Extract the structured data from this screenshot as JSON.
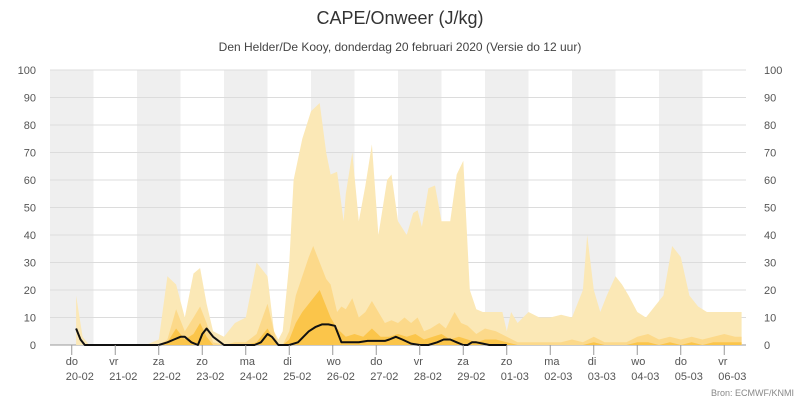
{
  "chart_data": {
    "type": "area",
    "title": "CAPE/Onweer (J/kg)",
    "subtitle": "Den Helder/De Kooy, donderdag 20 februari 2020 (Versie do 12 uur)",
    "source": "Bron: ECMWF/KNMI",
    "xlabel": "",
    "ylabel": "",
    "ylim": [
      0,
      100
    ],
    "yticks": [
      0,
      10,
      20,
      30,
      40,
      50,
      60,
      70,
      80,
      90,
      100
    ],
    "x_range": [
      -0.5,
      15.5
    ],
    "grid": "horizontal gridlines; alternating grey day bands",
    "legend": "none",
    "x_ticks": [
      {
        "x": 0,
        "day": "do",
        "date": "20-02"
      },
      {
        "x": 1,
        "day": "vr",
        "date": "21-02"
      },
      {
        "x": 2,
        "day": "za",
        "date": "22-02"
      },
      {
        "x": 3,
        "day": "zo",
        "date": "23-02"
      },
      {
        "x": 4,
        "day": "ma",
        "date": "24-02"
      },
      {
        "x": 5,
        "day": "di",
        "date": "25-02"
      },
      {
        "x": 6,
        "day": "wo",
        "date": "26-02"
      },
      {
        "x": 7,
        "day": "do",
        "date": "27-02"
      },
      {
        "x": 8,
        "day": "vr",
        "date": "28-02"
      },
      {
        "x": 9,
        "day": "za",
        "date": "29-02"
      },
      {
        "x": 10,
        "day": "zo",
        "date": "01-03"
      },
      {
        "x": 11,
        "day": "ma",
        "date": "02-03"
      },
      {
        "x": 12,
        "day": "di",
        "date": "03-03"
      },
      {
        "x": 13,
        "day": "wo",
        "date": "04-03"
      },
      {
        "x": 14,
        "day": "do",
        "date": "05-03"
      },
      {
        "x": 15,
        "day": "vr",
        "date": "06-03"
      }
    ],
    "shaded_day_intervals": [
      [
        -0.5,
        0.5
      ],
      [
        1.5,
        2.5
      ],
      [
        3.5,
        4.5
      ],
      [
        5.5,
        6.5
      ],
      [
        7.5,
        8.5
      ],
      [
        9.5,
        10.5
      ],
      [
        11.5,
        12.5
      ],
      [
        13.5,
        14.5
      ]
    ],
    "colors": {
      "band_light": "#fbe8b6",
      "band_mid": "#fcd98a",
      "band_dark": "#fbc54a",
      "median": "#111111",
      "day_band": "#efefef",
      "grid": "#dcdcdc"
    },
    "series": [
      {
        "key": "upper",
        "x": [
          0.1,
          0.25,
          0.4,
          0.6,
          0.9,
          1.3,
          1.7,
          2.0,
          2.2,
          2.4,
          2.6,
          2.8,
          2.95,
          3.1,
          3.25,
          3.5,
          3.75,
          4.0,
          4.25,
          4.5,
          4.65,
          4.75,
          4.85,
          5.0,
          5.1,
          5.3,
          5.5,
          5.7,
          5.85,
          5.95,
          6.1,
          6.25,
          6.3,
          6.45,
          6.6,
          6.75,
          6.9,
          7.05,
          7.25,
          7.35,
          7.5,
          7.7,
          7.85,
          7.95,
          8.05,
          8.2,
          8.35,
          8.5,
          8.7,
          8.85,
          9.0,
          9.15,
          9.3,
          9.45,
          9.6,
          9.75,
          9.9,
          10.0,
          10.1,
          10.25,
          10.5,
          10.75,
          11.0,
          11.25,
          11.5,
          11.75,
          11.85,
          12.0,
          12.15,
          12.3,
          12.5,
          12.65,
          12.8,
          13.0,
          13.2,
          13.4,
          13.6,
          13.8,
          14.0,
          14.2,
          14.4,
          14.6,
          14.75,
          14.9,
          15.05,
          15.2,
          15.4
        ],
        "values": [
          18,
          3,
          0,
          0,
          0,
          0,
          0,
          2,
          25,
          22,
          10,
          26,
          28,
          15,
          5,
          3,
          8,
          10,
          30,
          25,
          5,
          2,
          5,
          30,
          60,
          75,
          85,
          88,
          70,
          62,
          63,
          45,
          55,
          70,
          45,
          58,
          73,
          40,
          60,
          62,
          45,
          40,
          48,
          49,
          43,
          57,
          58,
          45,
          45,
          62,
          67,
          20,
          13,
          12,
          12,
          12,
          12,
          5,
          12,
          8,
          12,
          10,
          10,
          11,
          10,
          20,
          40,
          20,
          12,
          18,
          25,
          22,
          18,
          12,
          10,
          14,
          18,
          36,
          32,
          18,
          14,
          12,
          12,
          12,
          12,
          12,
          12
        ]
      },
      {
        "key": "mid",
        "x": [
          0.6,
          0.9,
          1.3,
          1.7,
          2.0,
          2.2,
          2.4,
          2.6,
          2.8,
          2.95,
          3.1,
          3.25,
          3.5,
          3.75,
          4.0,
          4.25,
          4.5,
          4.65,
          4.75,
          4.85,
          5.0,
          5.15,
          5.3,
          5.45,
          5.55,
          5.7,
          5.85,
          5.95,
          6.1,
          6.2,
          6.3,
          6.45,
          6.6,
          6.75,
          6.9,
          7.05,
          7.2,
          7.35,
          7.5,
          7.65,
          7.8,
          7.95,
          8.1,
          8.25,
          8.45,
          8.6,
          8.8,
          8.95,
          9.1,
          9.3,
          9.5,
          9.75,
          10.0,
          10.25,
          10.5,
          10.75,
          11.0,
          11.25,
          11.5,
          11.75,
          12.0,
          12.25,
          12.5,
          12.75,
          13.0,
          13.25,
          13.5,
          13.75,
          14.0,
          14.25,
          14.5,
          14.75,
          15.0,
          15.25,
          15.4
        ],
        "values": [
          0,
          0,
          0,
          0,
          0,
          2,
          13,
          5,
          10,
          14,
          8,
          1,
          0,
          1,
          1,
          4,
          15,
          5,
          0,
          0,
          5,
          18,
          25,
          32,
          36,
          30,
          24,
          22,
          12,
          14,
          13,
          17,
          10,
          12,
          16,
          12,
          8,
          9,
          8,
          10,
          8,
          10,
          5,
          6,
          8,
          6,
          12,
          8,
          7,
          4,
          6,
          5,
          3,
          1,
          1,
          1,
          1,
          1,
          2,
          1,
          3,
          1,
          1,
          1,
          3,
          4,
          2,
          3,
          2,
          3,
          2,
          3,
          4,
          3,
          3
        ]
      },
      {
        "key": "lower",
        "x": [
          0.6,
          0.9,
          1.3,
          1.7,
          2.0,
          2.2,
          2.4,
          2.6,
          2.8,
          2.95,
          3.1,
          3.25,
          3.5,
          3.75,
          4.0,
          4.25,
          4.5,
          4.65,
          4.75,
          4.85,
          5.0,
          5.15,
          5.3,
          5.5,
          5.7,
          5.85,
          5.95,
          6.1,
          6.3,
          6.5,
          6.7,
          6.9,
          7.1,
          7.3,
          7.5,
          7.7,
          7.9,
          8.1,
          8.3,
          8.5,
          8.7,
          8.9,
          9.1,
          9.3,
          9.5,
          9.75,
          10.0,
          10.25,
          10.5,
          10.75,
          11.0,
          11.25,
          11.5,
          11.75,
          12.0,
          12.25,
          12.5,
          12.75,
          13.0,
          13.25,
          13.5,
          13.75,
          14.0,
          14.25,
          14.5,
          14.75,
          15.0,
          15.25,
          15.4
        ],
        "values": [
          0,
          0,
          0,
          0,
          0,
          1,
          6,
          2,
          4,
          8,
          3,
          0,
          0,
          0,
          0,
          1,
          6,
          2,
          0,
          0,
          2,
          8,
          12,
          16,
          20,
          14,
          10,
          6,
          3,
          4,
          3,
          6,
          3,
          3,
          4,
          3,
          4,
          2,
          3,
          4,
          2,
          3,
          2,
          1,
          2,
          2,
          1,
          0,
          0,
          0,
          0,
          0,
          0,
          0,
          1,
          0,
          0,
          0,
          1,
          1,
          0,
          1,
          0,
          1,
          0,
          1,
          1,
          1,
          1
        ]
      },
      {
        "key": "median",
        "x": [
          0.1,
          0.2,
          0.3,
          0.45,
          0.6,
          1.0,
          1.5,
          2.0,
          2.2,
          2.35,
          2.5,
          2.6,
          2.75,
          2.9,
          3.0,
          3.1,
          3.25,
          3.5,
          3.75,
          4.0,
          4.2,
          4.35,
          4.5,
          4.6,
          4.75,
          5.0,
          5.2,
          5.45,
          5.6,
          5.75,
          5.9,
          6.05,
          6.2,
          6.4,
          6.6,
          6.8,
          7.0,
          7.2,
          7.3,
          7.45,
          7.6,
          7.8,
          8.0,
          8.2,
          8.4,
          8.55,
          8.7,
          8.85,
          9.0,
          9.1,
          9.2,
          9.3,
          9.45,
          9.6,
          9.75,
          10.0
        ],
        "values": [
          6,
          2,
          0,
          0,
          0,
          0,
          0,
          0,
          1,
          2,
          3,
          3,
          1,
          0,
          4,
          6,
          3,
          0,
          0,
          0,
          0,
          1,
          4,
          3,
          0,
          0,
          1,
          5,
          6.5,
          7.5,
          7.5,
          7,
          1,
          1,
          1,
          1.5,
          1.5,
          1.5,
          2,
          3,
          2,
          0.5,
          0,
          0,
          1,
          2,
          2,
          1,
          0,
          0,
          1,
          1,
          0.5,
          0,
          0,
          0
        ]
      }
    ]
  }
}
